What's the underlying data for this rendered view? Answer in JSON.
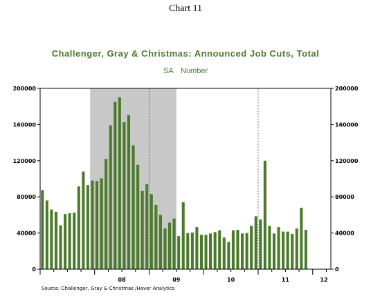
{
  "header": {
    "chart_number": "Chart 11",
    "title": "Challenger, Gray & Christmas: Announced Job Cuts, Total",
    "subtitle": "SA    Number",
    "source": "Source:  Challenger, Gray & Christmas /Haver Analytics"
  },
  "colors": {
    "bar": "#4a7a2a",
    "recession": "#c8c8c8",
    "title": "#4a7a2a"
  },
  "chart_data": {
    "type": "bar",
    "title": "Challenger, Gray & Christmas: Announced Job Cuts, Total",
    "subtitle": "SA    Number",
    "ylim": [
      0,
      200000
    ],
    "yticks": [
      "0",
      "40000",
      "80000",
      "120000",
      "160000",
      "200000"
    ],
    "ytick_values": [
      0,
      40000,
      80000,
      120000,
      160000,
      200000
    ],
    "xticks": [
      "08",
      "09",
      "10",
      "11",
      "12"
    ],
    "recession_shading": {
      "start": "2007-12",
      "end": "2009-06"
    },
    "grid": "vertical dashed lines at year boundaries",
    "series": [
      {
        "values": [
          87500,
          76000,
          66000,
          63500,
          48500,
          61000,
          62000,
          62500,
          91500,
          108000,
          93000,
          98000,
          97500,
          100500,
          122000,
          159000,
          185000,
          190000,
          162500,
          170500,
          137000,
          115500,
          86500,
          94000,
          83000,
          71000,
          60000,
          45000,
          51500,
          56000,
          36500,
          74000,
          40000,
          40500,
          46500,
          38000,
          38000,
          39500,
          41000,
          43000,
          35000,
          30000,
          43000,
          43500,
          39500,
          40000,
          48000,
          58500,
          55000,
          120000,
          48000,
          39500,
          46500,
          41500,
          41500,
          39000,
          45000,
          68000,
          43500
        ]
      }
    ],
    "x_start": "2007-01",
    "x_end": "2011-11"
  }
}
